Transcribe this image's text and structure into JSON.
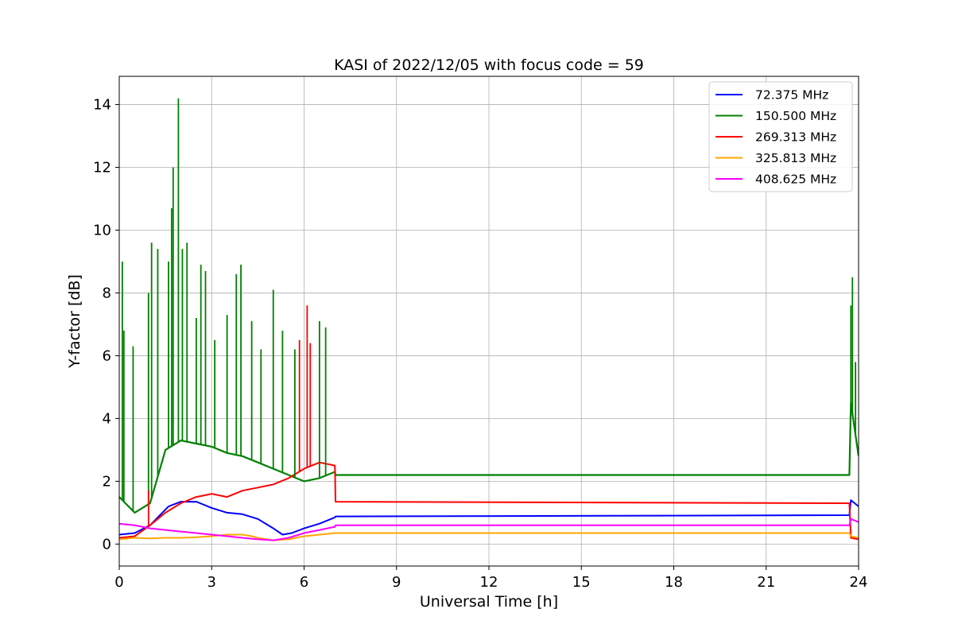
{
  "chart_data": {
    "type": "line",
    "title": "KASI of 2022/12/05 with focus code = 59",
    "xlabel": "Universal Time [h]",
    "ylabel": "Y-factor [dB]",
    "xlim": [
      0,
      24
    ],
    "ylim": [
      -0.7,
      14.9
    ],
    "xticks": [
      0,
      3,
      6,
      9,
      12,
      15,
      18,
      21,
      24
    ],
    "yticks": [
      0,
      2,
      4,
      6,
      8,
      10,
      12,
      14
    ],
    "grid": true,
    "legend_position": "top-right",
    "series": [
      {
        "name": " 72.375 MHz",
        "color": "#0000ff",
        "x": [
          0,
          0.5,
          1,
          1.3,
          1.6,
          2,
          2.5,
          3,
          3.5,
          4,
          4.5,
          5,
          5.3,
          5.6,
          6,
          6.5,
          7,
          7.02,
          23.7,
          23.75,
          24
        ],
        "y": [
          0.3,
          0.35,
          0.6,
          0.9,
          1.2,
          1.35,
          1.35,
          1.15,
          1.0,
          0.95,
          0.8,
          0.5,
          0.3,
          0.35,
          0.5,
          0.65,
          0.85,
          0.88,
          0.92,
          1.4,
          1.2
        ]
      },
      {
        "name": "150.500 MHz",
        "color": "#008000",
        "x": [
          0,
          0.5,
          1,
          1.5,
          2,
          2.5,
          3,
          3.5,
          4,
          4.5,
          5,
          5.5,
          6,
          6.5,
          7,
          7.02,
          23.7,
          23.75,
          24
        ],
        "y": [
          1.5,
          1.0,
          1.3,
          3.0,
          3.3,
          3.2,
          3.1,
          2.9,
          2.8,
          2.6,
          2.4,
          2.2,
          2.0,
          2.1,
          2.3,
          2.2,
          2.2,
          4.5,
          2.8
        ]
      },
      {
        "name": "269.313 MHz",
        "color": "#ff0000",
        "x": [
          0,
          0.5,
          1,
          1.5,
          2,
          2.5,
          3,
          3.5,
          4,
          4.5,
          5,
          5.5,
          6,
          6.5,
          7,
          7.02,
          23.7,
          23.75,
          24
        ],
        "y": [
          0.2,
          0.25,
          0.6,
          1.0,
          1.3,
          1.5,
          1.6,
          1.5,
          1.7,
          1.8,
          1.9,
          2.1,
          2.4,
          2.6,
          2.5,
          1.35,
          1.3,
          0.2,
          0.15
        ]
      },
      {
        "name": "325.813 MHz",
        "color": "#ffa500",
        "x": [
          0,
          0.5,
          1,
          1.5,
          2,
          2.5,
          3,
          3.5,
          4,
          4.3,
          4.5,
          5,
          5.5,
          6,
          6.5,
          7,
          7.02,
          23.7,
          23.75,
          24
        ],
        "y": [
          0.15,
          0.2,
          0.18,
          0.2,
          0.2,
          0.22,
          0.25,
          0.3,
          0.3,
          0.25,
          0.2,
          0.12,
          0.15,
          0.25,
          0.3,
          0.35,
          0.35,
          0.35,
          0.25,
          0.2
        ]
      },
      {
        "name": "408.625 MHz",
        "color": "#ff00ff",
        "x": [
          0,
          0.5,
          1,
          1.5,
          2,
          2.5,
          3,
          3.5,
          4,
          4.5,
          5,
          5.5,
          6,
          6.5,
          7,
          7.02,
          23.7,
          23.75,
          24
        ],
        "y": [
          0.65,
          0.6,
          0.5,
          0.45,
          0.4,
          0.35,
          0.3,
          0.25,
          0.2,
          0.15,
          0.12,
          0.2,
          0.35,
          0.45,
          0.55,
          0.6,
          0.6,
          0.8,
          0.7
        ]
      }
    ],
    "spikes": [
      {
        "series": 1,
        "x": 0.1,
        "y": 9.0
      },
      {
        "series": 1,
        "x": 0.15,
        "y": 6.8
      },
      {
        "series": 1,
        "x": 0.45,
        "y": 6.3
      },
      {
        "series": 1,
        "x": 0.95,
        "y": 8.0
      },
      {
        "series": 1,
        "x": 1.05,
        "y": 9.6
      },
      {
        "series": 1,
        "x": 1.25,
        "y": 9.4
      },
      {
        "series": 1,
        "x": 1.6,
        "y": 9.0
      },
      {
        "series": 1,
        "x": 1.7,
        "y": 10.7
      },
      {
        "series": 1,
        "x": 1.75,
        "y": 12.0
      },
      {
        "series": 1,
        "x": 1.92,
        "y": 14.2
      },
      {
        "series": 1,
        "x": 2.05,
        "y": 9.4
      },
      {
        "series": 1,
        "x": 2.2,
        "y": 9.6
      },
      {
        "series": 1,
        "x": 2.5,
        "y": 7.2
      },
      {
        "series": 1,
        "x": 2.65,
        "y": 8.9
      },
      {
        "series": 1,
        "x": 2.8,
        "y": 8.7
      },
      {
        "series": 1,
        "x": 3.1,
        "y": 6.5
      },
      {
        "series": 1,
        "x": 3.5,
        "y": 7.3
      },
      {
        "series": 1,
        "x": 3.8,
        "y": 8.6
      },
      {
        "series": 1,
        "x": 3.95,
        "y": 8.9
      },
      {
        "series": 1,
        "x": 4.3,
        "y": 7.1
      },
      {
        "series": 1,
        "x": 4.6,
        "y": 6.2
      },
      {
        "series": 1,
        "x": 5.0,
        "y": 8.1
      },
      {
        "series": 1,
        "x": 5.3,
        "y": 6.8
      },
      {
        "series": 1,
        "x": 5.7,
        "y": 6.2
      },
      {
        "series": 1,
        "x": 6.5,
        "y": 7.1
      },
      {
        "series": 1,
        "x": 6.7,
        "y": 6.9
      },
      {
        "series": 1,
        "x": 23.8,
        "y": 8.5
      },
      {
        "series": 1,
        "x": 23.75,
        "y": 7.6
      },
      {
        "series": 1,
        "x": 23.9,
        "y": 5.8
      },
      {
        "series": 2,
        "x": 5.85,
        "y": 6.5
      },
      {
        "series": 2,
        "x": 6.1,
        "y": 7.6
      },
      {
        "series": 2,
        "x": 6.2,
        "y": 6.4
      },
      {
        "series": 2,
        "x": 0.95,
        "y": 1.7
      }
    ]
  }
}
